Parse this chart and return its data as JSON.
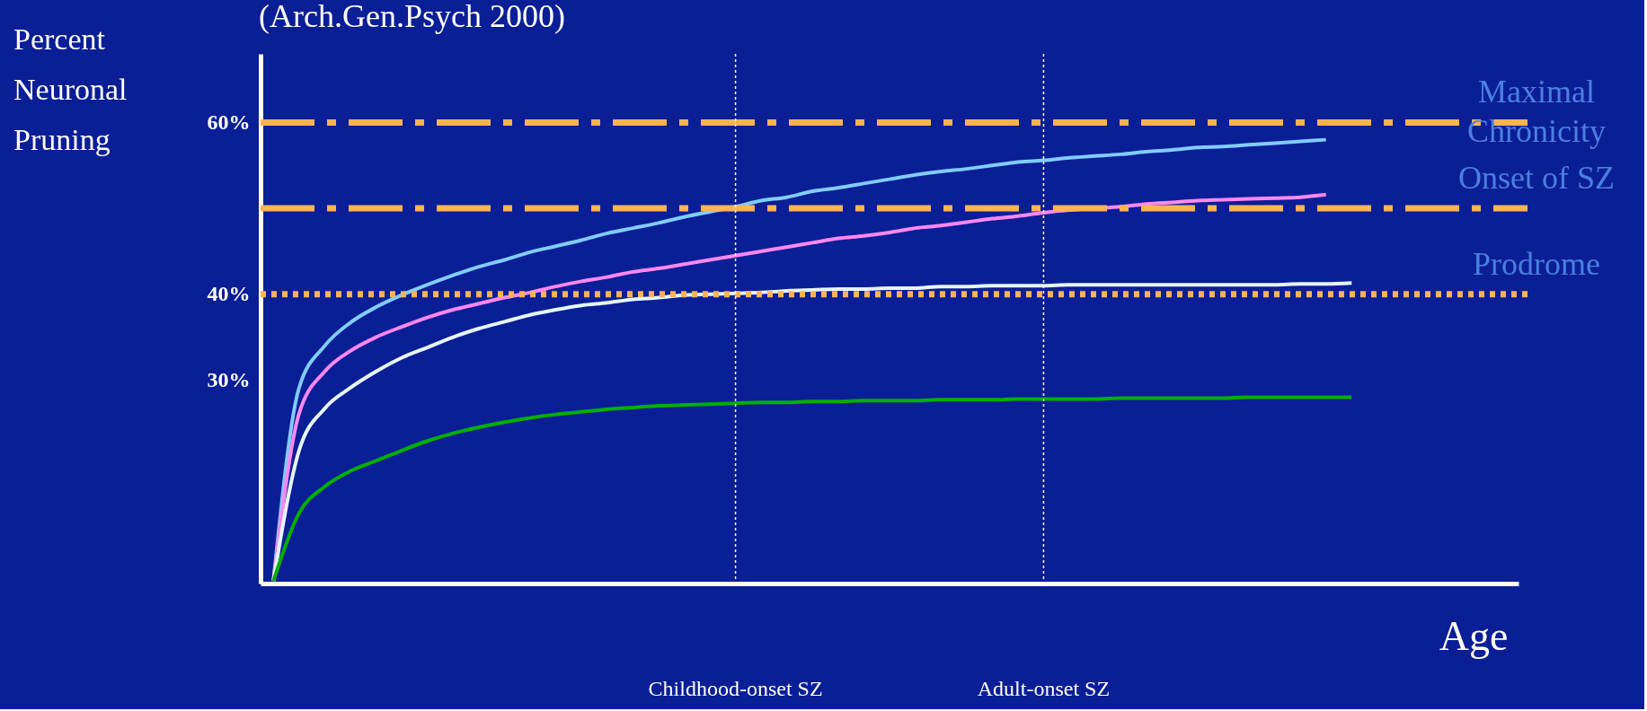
{
  "chart_data": {
    "type": "line",
    "ylabel": "Percent Neuronal Pruning",
    "xlabel": "Age",
    "annotations": [
      "(Arch.Gen.Psych 2000)"
    ],
    "categories": [
      null,
      null,
      null,
      null,
      null,
      null,
      null,
      null,
      null,
      null,
      null,
      null,
      null,
      null,
      null,
      null,
      null,
      null,
      "Childhood-onset SZ",
      null,
      null,
      null,
      null,
      null,
      null,
      null,
      null,
      null,
      null,
      null,
      "Adult-onset SZ",
      null,
      null,
      null,
      null,
      null,
      null,
      null,
      null,
      null,
      null,
      null,
      null,
      null,
      null,
      null,
      null,
      null,
      null
    ],
    "series": [
      {
        "color": "#80ccff",
        "values": [
          6.6,
          29.1,
          34.0,
          36.7,
          38.5,
          39.9,
          41.1,
          42.2,
          43.2,
          44.0,
          44.9,
          45.6,
          46.3,
          47.1,
          47.7,
          48.3,
          49.0,
          49.6,
          50.2,
          50.9,
          51.3,
          52.0,
          52.4,
          52.9,
          53.4,
          53.9,
          54.3,
          54.6,
          55.0,
          55.4,
          55.6,
          55.9,
          56.1,
          56.3,
          56.6,
          56.8,
          57.1,
          57.2,
          57.4,
          57.6,
          57.8,
          58.0,
          null,
          null,
          null,
          null,
          null,
          null,
          null
        ]
      },
      {
        "color": "#ff88f0",
        "values": [
          6.6,
          26.1,
          31.0,
          33.4,
          35.0,
          36.2,
          37.3,
          38.2,
          38.9,
          39.6,
          40.2,
          40.9,
          41.5,
          42.0,
          42.6,
          43.0,
          43.5,
          44.0,
          44.5,
          45.0,
          45.5,
          46.0,
          46.5,
          46.8,
          47.2,
          47.7,
          48.0,
          48.4,
          48.8,
          49.1,
          49.5,
          49.8,
          50.0,
          50.2,
          50.5,
          50.7,
          50.9,
          51.0,
          51.1,
          51.2,
          51.3,
          51.6,
          null,
          null,
          null,
          null,
          null,
          null,
          null
        ]
      },
      {
        "color": "#e6f6ff",
        "values": [
          6.6,
          21.8,
          26.7,
          29.1,
          31.0,
          32.6,
          33.8,
          35.0,
          36.0,
          36.8,
          37.6,
          38.2,
          38.7,
          39.0,
          39.4,
          39.6,
          39.9,
          40.0,
          40.1,
          40.2,
          40.4,
          40.5,
          40.6,
          40.6,
          40.7,
          40.7,
          40.9,
          40.9,
          41.0,
          41.0,
          41.0,
          41.1,
          41.1,
          41.1,
          41.1,
          41.1,
          41.1,
          41.1,
          41.1,
          41.1,
          41.2,
          41.2,
          41.3,
          null,
          null,
          null,
          null,
          null,
          null
        ]
      },
      {
        "color": "#00b000",
        "values": [
          6.6,
          14.5,
          17.6,
          19.4,
          20.6,
          21.8,
          22.9,
          23.8,
          24.5,
          25.1,
          25.6,
          26.0,
          26.3,
          26.6,
          26.8,
          27.0,
          27.1,
          27.2,
          27.3,
          27.4,
          27.4,
          27.5,
          27.5,
          27.6,
          27.6,
          27.6,
          27.7,
          27.7,
          27.7,
          27.8,
          27.8,
          27.8,
          27.8,
          27.9,
          27.9,
          27.9,
          27.9,
          27.9,
          28.0,
          28.0,
          28.0,
          28.0,
          28.0,
          null,
          null,
          null,
          null,
          null,
          null
        ]
      }
    ],
    "ylim": [
      6.3,
      68
    ],
    "yticks": [
      {
        "value": 30,
        "label": "30%"
      },
      {
        "value": 40,
        "label": "40%"
      },
      {
        "value": 60,
        "label": "60%"
      }
    ],
    "ref_lines": [
      {
        "axis": "y",
        "value": 60,
        "label": "Maximal Chronicity",
        "color": "#ffb357",
        "line_style": "dashed"
      },
      {
        "axis": "y",
        "value": 50,
        "label": "Onset of SZ",
        "color": "#ffb357",
        "line_style": "dashed"
      },
      {
        "axis": "y",
        "value": 40,
        "label": "Prodrome",
        "color": "#ffb357",
        "line_style": "dotted"
      },
      {
        "axis": "x",
        "value": "Childhood-onset SZ",
        "color": "#ffffff",
        "line_style": "dotted"
      },
      {
        "axis": "x",
        "value": "Adult-onset SZ",
        "color": "#ffffff",
        "line_style": "dotted"
      }
    ],
    "grid": false,
    "marker": "none",
    "line_style": "solid"
  }
}
